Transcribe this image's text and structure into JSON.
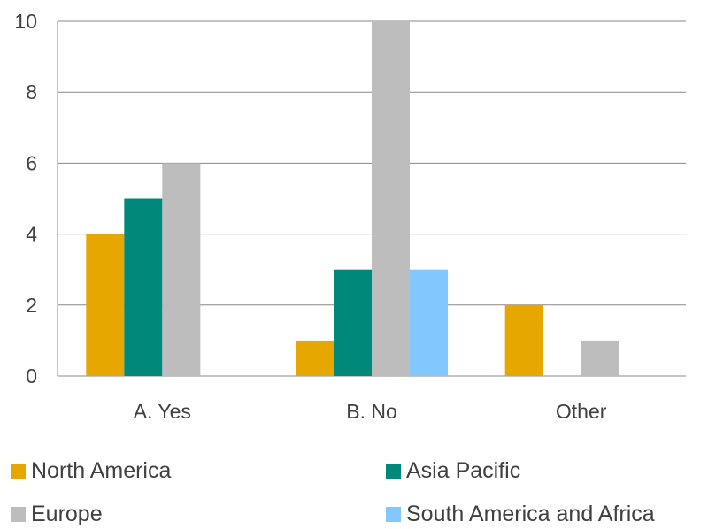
{
  "chart_data": {
    "type": "bar",
    "categories": [
      "A. Yes",
      "B. No",
      "Other"
    ],
    "series": [
      {
        "name": "North America",
        "color": "#E6A800",
        "values": [
          4,
          1,
          2
        ]
      },
      {
        "name": "Asia Pacific",
        "color": "#00897B",
        "values": [
          5,
          3,
          0
        ]
      },
      {
        "name": "Europe",
        "color": "#BDBDBD",
        "values": [
          6,
          10,
          1
        ]
      },
      {
        "name": "South America and Africa",
        "color": "#82C8FF",
        "values": [
          0,
          3,
          0
        ]
      }
    ],
    "ylim": [
      0,
      10
    ],
    "yticks": [
      "0",
      "2",
      "4",
      "6",
      "8",
      "10"
    ],
    "grid": true,
    "legend_placement": "bottom"
  }
}
